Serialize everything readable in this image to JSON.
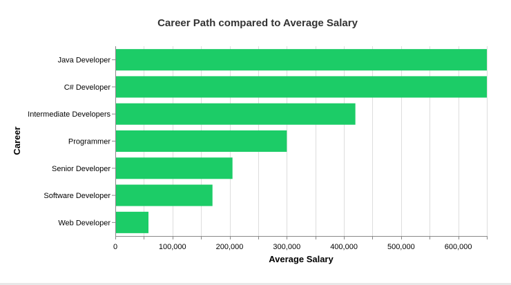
{
  "chart_data": {
    "type": "bar",
    "orientation": "horizontal",
    "title": "Career Path compared to Average Salary",
    "xlabel": "Average Salary",
    "ylabel": "Career",
    "categories": [
      "Java Developer",
      "C# Developer",
      "Intermediate Developers",
      "Programmer",
      "Senior Developer",
      "Software Developer",
      "Web Developer"
    ],
    "values": [
      650000,
      650000,
      420000,
      300000,
      205000,
      170000,
      58000
    ],
    "xlim": [
      0,
      650000
    ],
    "x_ticks": [
      0,
      100000,
      200000,
      300000,
      400000,
      500000,
      600000
    ],
    "x_tick_labels": [
      "0",
      "100,000",
      "200,000",
      "300,000",
      "400,000",
      "500,000",
      "600,000"
    ],
    "grid": true,
    "bar_color": "#1ccc67"
  }
}
